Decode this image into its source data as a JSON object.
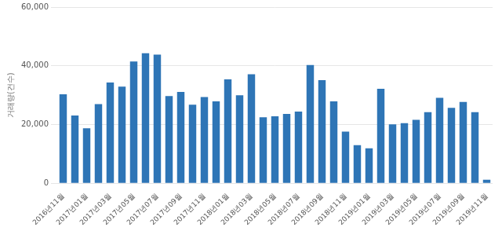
{
  "chart_data": {
    "type": "bar",
    "y_label": "거래량(건수)",
    "categories": [
      "2016년11월",
      null,
      "2017년01월",
      null,
      "2017년03월",
      null,
      "2017년05월",
      null,
      "2017년07월",
      null,
      "2017년09월",
      null,
      "2017년11월",
      null,
      "2018년01월",
      null,
      "2018년03월",
      null,
      "2018년05월",
      null,
      "2018년07월",
      null,
      "2018년09월",
      null,
      "2018년11월",
      null,
      "2019년01월",
      null,
      "2019년03월",
      null,
      "2019년05월",
      null,
      "2019년07월",
      null,
      "2019년09월",
      null,
      "2019년11월"
    ],
    "values": [
      30300,
      23100,
      18750,
      27000,
      34300,
      32900,
      41500,
      44300,
      43800,
      29700,
      31100,
      26800,
      29400,
      27900,
      35400,
      30000,
      37100,
      22500,
      22800,
      23600,
      24400,
      40300,
      35100,
      27900,
      17600,
      13000,
      11900,
      32200,
      20100,
      20500,
      21600,
      24200,
      29100,
      25700,
      27700,
      24200,
      1200
    ],
    "color": "#2e75b6",
    "ylim": [
      0,
      60000
    ],
    "yticks": [
      0,
      {
        "value": 20000,
        "label": "20,000"
      },
      {
        "value": 40000,
        "label": "40,000"
      },
      {
        "value": 60000,
        "label": "60,000"
      }
    ],
    "grid": true
  }
}
